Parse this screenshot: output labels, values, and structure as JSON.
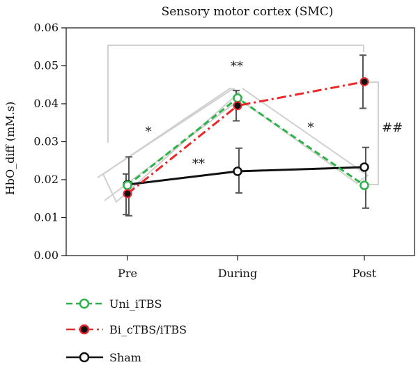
{
  "chart_data": {
    "type": "line",
    "title": "Sensory motor cortex (SMC)",
    "xlabel": "",
    "ylabel": "HbO_diff (mM.s)",
    "categories": [
      "Pre",
      "During",
      "Post"
    ],
    "ylim": [
      0,
      0.06
    ],
    "yticks": [
      "0.00",
      "0.01",
      "0.02",
      "0.03",
      "0.04",
      "0.05",
      "0.06"
    ],
    "series": [
      {
        "name": "Uni_iTBS",
        "values": [
          0.0185,
          0.0415,
          0.0185
        ],
        "color": "#2db34a",
        "linestyle": "dashed",
        "marker": "open-circle"
      },
      {
        "name": "Bi_cTBS/iTBS",
        "values": [
          0.0163,
          0.0395,
          0.0458
        ],
        "errors": [
          [
            0.0108,
            0.0215
          ],
          [
            0.0355,
            0.0435
          ],
          [
            0.0388,
            0.0528
          ]
        ],
        "color": "#e8282b",
        "linestyle": "dashdot",
        "marker": "filled-circle"
      },
      {
        "name": "Sham",
        "values": [
          0.0187,
          0.0222,
          0.0233
        ],
        "errors": [
          [
            0.0105,
            0.026
          ],
          [
            0.0165,
            0.0283
          ],
          [
            0.0125,
            0.0285
          ]
        ],
        "color": "#111111",
        "linestyle": "solid",
        "marker": "open-circle"
      }
    ],
    "annotations": [
      "*",
      "**",
      "**",
      "*",
      "##"
    ],
    "legend": "bottom-left",
    "grid": false
  }
}
